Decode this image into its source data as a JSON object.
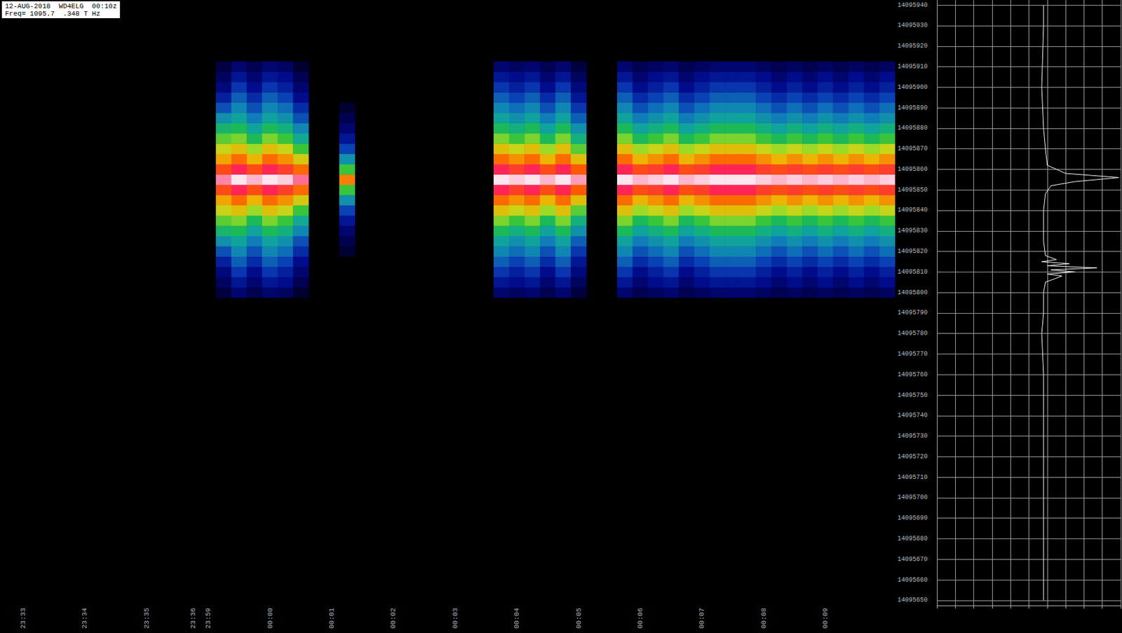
{
  "chart_data": [
    {
      "type": "heatmap",
      "title": "12-AUG-2018  WD4ELG  00:10z",
      "subtitle": "Freq= 1095.7  .348 T Hz",
      "x": [
        null,
        "23:33",
        null,
        null,
        null,
        "23:34",
        null,
        null,
        null,
        "23:35",
        null,
        null,
        "23:36",
        "23:59",
        null,
        null,
        null,
        "00:00",
        null,
        null,
        null,
        "00:01",
        null,
        null,
        null,
        "00:02",
        null,
        null,
        null,
        "00:03",
        null,
        null,
        null,
        "00:04",
        null,
        null,
        null,
        "00:05",
        null,
        null,
        null,
        "00:06",
        null,
        null,
        null,
        "00:07",
        null,
        null,
        null,
        "00:08",
        null,
        null,
        null,
        "00:09",
        null,
        null,
        null,
        null
      ],
      "y": [
        "14095650",
        null,
        "14095660",
        null,
        "14095670",
        null,
        "14095680",
        null,
        "14095690",
        null,
        "14095700",
        null,
        "14095710",
        null,
        "14095720",
        null,
        "14095730",
        null,
        "14095740",
        null,
        "14095750",
        null,
        "14095760",
        null,
        "14095770",
        null,
        "14095780",
        null,
        "14095790",
        null,
        "14095800",
        null,
        "14095810",
        null,
        "14095820",
        null,
        "14095830",
        null,
        "14095840",
        null,
        "14095850",
        null,
        "14095860",
        null,
        "14095870",
        null,
        "14095880",
        null,
        "14095890",
        null,
        "14095900",
        null,
        "14095910",
        null,
        "14095920",
        null,
        "14095930",
        null,
        "14095940"
      ],
      "color_range": [
        0,
        100
      ],
      "cells": [
        {
          "x": 14,
          "y": 30,
          "values": [
            8,
            12,
            16,
            22,
            30,
            40,
            50,
            58,
            66,
            74,
            84,
            95,
            84,
            74,
            66,
            58,
            50,
            40,
            30,
            22,
            16,
            12,
            8
          ]
        },
        {
          "x": 15,
          "y": 30,
          "values": [
            14,
            20,
            26,
            32,
            38,
            44,
            52,
            60,
            70,
            80,
            90,
            99,
            90,
            80,
            70,
            60,
            52,
            44,
            38,
            32,
            26,
            20,
            14
          ]
        },
        {
          "x": 16,
          "y": 30,
          "values": [
            10,
            14,
            18,
            24,
            30,
            36,
            44,
            52,
            62,
            72,
            84,
            97,
            84,
            72,
            62,
            52,
            44,
            36,
            30,
            24,
            18,
            14,
            10
          ]
        },
        {
          "x": 17,
          "y": 30,
          "values": [
            14,
            20,
            26,
            32,
            38,
            44,
            52,
            60,
            70,
            80,
            90,
            99,
            90,
            80,
            70,
            60,
            52,
            44,
            38,
            32,
            26,
            20,
            14
          ]
        },
        {
          "x": 18,
          "y": 30,
          "values": [
            12,
            18,
            22,
            28,
            34,
            40,
            48,
            56,
            66,
            76,
            86,
            98,
            86,
            76,
            66,
            56,
            48,
            40,
            34,
            28,
            22,
            18,
            12
          ]
        },
        {
          "x": 19,
          "y": 30,
          "values": [
            6,
            10,
            14,
            18,
            24,
            30,
            38,
            46,
            56,
            68,
            80,
            94,
            80,
            68,
            56,
            46,
            38,
            30,
            24,
            18,
            14,
            10,
            6
          ]
        },
        {
          "x": 22,
          "y": 30,
          "values": [
            0,
            0,
            0,
            0,
            6,
            10,
            14,
            20,
            28,
            40,
            56,
            78,
            56,
            40,
            28,
            20,
            14,
            10,
            6,
            0,
            0,
            0,
            0
          ]
        },
        {
          "x": 32,
          "y": 30,
          "values": [
            14,
            20,
            26,
            32,
            38,
            44,
            52,
            60,
            70,
            80,
            90,
            99,
            90,
            80,
            70,
            60,
            52,
            44,
            38,
            32,
            26,
            20,
            14
          ]
        },
        {
          "x": 33,
          "y": 30,
          "values": [
            12,
            18,
            22,
            28,
            34,
            40,
            48,
            56,
            66,
            76,
            86,
            98,
            86,
            76,
            66,
            56,
            48,
            40,
            34,
            28,
            22,
            18,
            12
          ]
        },
        {
          "x": 34,
          "y": 30,
          "values": [
            14,
            20,
            26,
            32,
            38,
            44,
            52,
            60,
            70,
            80,
            90,
            99,
            90,
            80,
            70,
            60,
            52,
            44,
            38,
            32,
            26,
            20,
            14
          ]
        },
        {
          "x": 35,
          "y": 30,
          "values": [
            10,
            14,
            18,
            24,
            30,
            36,
            44,
            52,
            62,
            72,
            84,
            97,
            84,
            72,
            62,
            52,
            44,
            36,
            30,
            24,
            18,
            14,
            10
          ]
        },
        {
          "x": 36,
          "y": 30,
          "values": [
            14,
            20,
            26,
            32,
            38,
            44,
            52,
            60,
            70,
            80,
            90,
            99,
            90,
            80,
            70,
            60,
            52,
            44,
            38,
            32,
            26,
            20,
            14
          ]
        },
        {
          "x": 37,
          "y": 30,
          "values": [
            8,
            12,
            16,
            20,
            26,
            32,
            40,
            48,
            58,
            70,
            82,
            96,
            82,
            70,
            58,
            48,
            40,
            32,
            26,
            20,
            16,
            12,
            8
          ]
        },
        {
          "x": 40,
          "y": 30,
          "values": [
            14,
            20,
            26,
            32,
            38,
            44,
            52,
            60,
            70,
            80,
            90,
            99,
            90,
            80,
            70,
            60,
            52,
            44,
            38,
            32,
            26,
            20,
            14
          ]
        },
        {
          "x": 41,
          "y": 30,
          "values": [
            10,
            14,
            18,
            24,
            30,
            36,
            44,
            52,
            62,
            72,
            84,
            97,
            84,
            72,
            62,
            52,
            44,
            36,
            30,
            24,
            18,
            14,
            10
          ]
        },
        {
          "x": 42,
          "y": 30,
          "values": [
            12,
            18,
            22,
            28,
            34,
            40,
            48,
            56,
            66,
            76,
            86,
            98,
            86,
            76,
            66,
            56,
            48,
            40,
            34,
            28,
            22,
            18,
            12
          ]
        },
        {
          "x": 43,
          "y": 30,
          "values": [
            14,
            20,
            26,
            32,
            38,
            44,
            52,
            60,
            70,
            80,
            90,
            99,
            90,
            80,
            70,
            60,
            52,
            44,
            38,
            32,
            26,
            20,
            14
          ]
        },
        {
          "x": 44,
          "y": 30,
          "values": [
            10,
            14,
            18,
            24,
            30,
            36,
            44,
            52,
            62,
            72,
            84,
            97,
            84,
            72,
            62,
            52,
            44,
            36,
            30,
            24,
            18,
            14,
            10
          ]
        },
        {
          "x": 45,
          "y": 30,
          "values": [
            12,
            18,
            22,
            28,
            34,
            40,
            48,
            56,
            66,
            76,
            86,
            98,
            86,
            76,
            66,
            56,
            48,
            40,
            34,
            28,
            22,
            18,
            12
          ]
        },
        {
          "x": 46,
          "y": 30,
          "values": [
            14,
            20,
            26,
            32,
            38,
            44,
            52,
            60,
            70,
            80,
            90,
            99,
            90,
            80,
            70,
            60,
            52,
            44,
            38,
            32,
            26,
            20,
            14
          ]
        },
        {
          "x": 47,
          "y": 30,
          "values": [
            14,
            20,
            26,
            32,
            38,
            44,
            52,
            60,
            70,
            80,
            90,
            99,
            90,
            80,
            70,
            60,
            52,
            44,
            38,
            32,
            26,
            20,
            14
          ]
        },
        {
          "x": 48,
          "y": 30,
          "values": [
            14,
            20,
            26,
            32,
            38,
            44,
            52,
            60,
            70,
            80,
            90,
            99,
            90,
            80,
            70,
            60,
            52,
            44,
            38,
            32,
            26,
            20,
            14
          ]
        },
        {
          "x": 49,
          "y": 30,
          "values": [
            12,
            18,
            22,
            28,
            34,
            40,
            48,
            56,
            66,
            76,
            86,
            98,
            86,
            76,
            66,
            56,
            48,
            40,
            34,
            28,
            22,
            18,
            12
          ]
        },
        {
          "x": 50,
          "y": 30,
          "values": [
            10,
            14,
            18,
            24,
            30,
            36,
            44,
            52,
            62,
            72,
            84,
            97,
            84,
            72,
            62,
            52,
            44,
            36,
            30,
            24,
            18,
            14,
            10
          ]
        },
        {
          "x": 51,
          "y": 30,
          "values": [
            12,
            18,
            22,
            28,
            34,
            40,
            48,
            56,
            66,
            76,
            86,
            98,
            86,
            76,
            66,
            56,
            48,
            40,
            34,
            28,
            22,
            18,
            12
          ]
        },
        {
          "x": 52,
          "y": 30,
          "values": [
            10,
            14,
            18,
            24,
            30,
            36,
            44,
            52,
            62,
            72,
            84,
            97,
            84,
            72,
            62,
            52,
            44,
            36,
            30,
            24,
            18,
            14,
            10
          ]
        },
        {
          "x": 53,
          "y": 30,
          "values": [
            12,
            18,
            22,
            28,
            34,
            40,
            48,
            56,
            66,
            76,
            86,
            98,
            86,
            76,
            66,
            56,
            48,
            40,
            34,
            28,
            22,
            18,
            12
          ]
        },
        {
          "x": 54,
          "y": 30,
          "values": [
            10,
            14,
            18,
            24,
            30,
            36,
            44,
            52,
            62,
            72,
            84,
            97,
            84,
            72,
            62,
            52,
            44,
            36,
            30,
            24,
            18,
            14,
            10
          ]
        },
        {
          "x": 55,
          "y": 30,
          "values": [
            12,
            18,
            22,
            28,
            34,
            40,
            48,
            56,
            66,
            76,
            86,
            98,
            86,
            76,
            66,
            56,
            48,
            40,
            34,
            28,
            22,
            18,
            12
          ]
        },
        {
          "x": 56,
          "y": 30,
          "values": [
            10,
            14,
            18,
            24,
            30,
            36,
            44,
            52,
            62,
            72,
            84,
            97,
            84,
            72,
            62,
            52,
            44,
            36,
            30,
            24,
            18,
            14,
            10
          ]
        },
        {
          "x": 57,
          "y": 30,
          "values": [
            12,
            18,
            22,
            28,
            34,
            40,
            48,
            56,
            66,
            76,
            86,
            98,
            86,
            76,
            66,
            56,
            48,
            40,
            34,
            28,
            22,
            18,
            12
          ]
        }
      ]
    },
    {
      "type": "line",
      "x": [
        5.8,
        5.8,
        5.7,
        5.8,
        5.9,
        6.0,
        7.0,
        9.9,
        7.5,
        6.2,
        5.9,
        5.8,
        5.8,
        5.9,
        6.5,
        5.7,
        7.2,
        6.0,
        8.7,
        6.2,
        7.5,
        6.0,
        6.8,
        5.9,
        5.8,
        5.8,
        5.7,
        5.8,
        5.8,
        5.8,
        5.8,
        5.8
      ],
      "y": [
        14095940,
        14095930,
        14095900,
        14095880,
        14095870,
        14095862,
        14095858,
        14095856,
        14095854,
        14095852,
        14095848,
        14095840,
        14095825,
        14095818,
        14095816,
        14095815,
        14095814,
        14095813,
        14095812,
        14095811,
        14095810,
        14095809,
        14095808,
        14095805,
        14095800,
        14095790,
        14095780,
        14095760,
        14095740,
        14095700,
        14095660,
        14095650
      ],
      "color": "#ffffff",
      "xlim": [
        0,
        10
      ],
      "xticks": [
        0,
        1,
        2,
        3,
        4,
        5,
        6,
        7,
        8,
        9,
        10
      ],
      "ylim": [
        14095647.5,
        14095942.5
      ],
      "yticks": [
        14095650,
        14095660,
        14095670,
        14095680,
        14095690,
        14095700,
        14095710,
        14095720,
        14095730,
        14095740,
        14095750,
        14095760,
        14095770,
        14095780,
        14095790,
        14095800,
        14095810,
        14095820,
        14095830,
        14095840,
        14095850,
        14095860,
        14095870,
        14095880,
        14095890,
        14095900,
        14095910,
        14095920,
        14095930,
        14095940
      ],
      "grid": true,
      "tick_labels": false
    }
  ]
}
